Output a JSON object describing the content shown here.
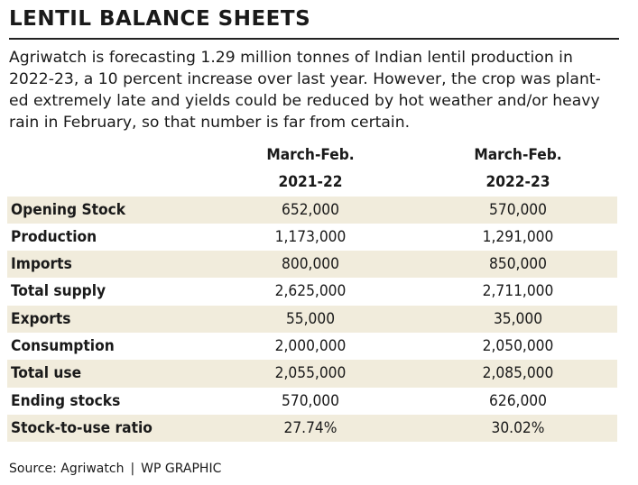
{
  "title": "LENTIL BALANCE SHEETS",
  "intro_lines": [
    "Agriwatch is forecasting 1.29 million tonnes of Indian lentil production in",
    "2022-23, a 10 percent increase over last year. However, the crop was plant-",
    "ed extremely late and yields could be reduced by hot weather and/or heavy",
    "rain in February, so that number is far from certain."
  ],
  "table": {
    "columns": [
      {
        "line1": "March-Feb.",
        "line2": "2021-22"
      },
      {
        "line1": "March-Feb.",
        "line2": "2022-23"
      }
    ],
    "rows": [
      {
        "label": "Opening Stock",
        "v1": "652,000",
        "v2": "570,000"
      },
      {
        "label": "Production",
        "v1": "1,173,000",
        "v2": "1,291,000"
      },
      {
        "label": "Imports",
        "v1": "800,000",
        "v2": "850,000"
      },
      {
        "label": "Total supply",
        "v1": "2,625,000",
        "v2": "2,711,000"
      },
      {
        "label": "Exports",
        "v1": "55,000",
        "v2": "35,000"
      },
      {
        "label": "Consumption",
        "v1": "2,000,000",
        "v2": "2,050,000"
      },
      {
        "label": "Total use",
        "v1": "2,055,000",
        "v2": "2,085,000"
      },
      {
        "label": "Ending stocks",
        "v1": "570,000",
        "v2": "626,000"
      },
      {
        "label": "Stock-to-use ratio",
        "v1": "27.74%",
        "v2": "30.02%"
      }
    ],
    "row_shading_color": "#f1ecdc"
  },
  "footer": {
    "source": "Source: Agriwatch",
    "separator": "|",
    "credit": "WP GRAPHIC"
  }
}
